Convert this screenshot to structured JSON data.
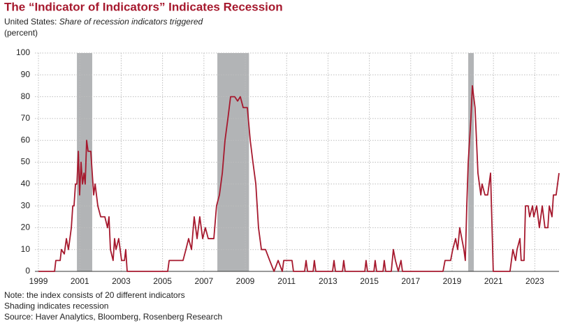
{
  "chart_data": {
    "type": "line",
    "title": "The “Indicator of Indicators” Indicates Recession",
    "subtitle_prefix": "United States:",
    "subtitle": "Share of recession indicators triggered",
    "unit": "(percent)",
    "notes": [
      "Note: the index consists of 20 different indicators",
      "Shading indicates recession",
      "Source: Haver Analytics, Bloomberg, Rosenberg Research"
    ],
    "recessions": [
      [
        2000.86,
        2001.6
      ],
      [
        2007.65,
        2009.18
      ],
      [
        2019.78,
        2020.05
      ]
    ],
    "recession_color": "#b2b4b6",
    "series": [
      {
        "color": "#a6192e",
        "x": [
          1999.0,
          1999.78,
          1999.84,
          2000.05,
          2000.11,
          2000.25,
          2000.35,
          2000.45,
          2000.59,
          2000.66,
          2000.72,
          2000.79,
          2000.86,
          2000.93,
          2000.99,
          2001.06,
          2001.13,
          2001.2,
          2001.26,
          2001.33,
          2001.4,
          2001.53,
          2001.6,
          2001.67,
          2001.74,
          2001.87,
          2002.01,
          2002.21,
          2002.34,
          2002.41,
          2002.48,
          2002.61,
          2002.68,
          2002.75,
          2002.88,
          2002.95,
          2003.02,
          2003.16,
          2003.22,
          2003.29,
          2005.25,
          2005.32,
          2005.99,
          2006.13,
          2006.26,
          2006.4,
          2006.53,
          2006.67,
          2006.8,
          2006.94,
          2007.07,
          2007.21,
          2007.48,
          2007.61,
          2007.75,
          2007.89,
          2008.02,
          2008.16,
          2008.29,
          2008.49,
          2008.63,
          2008.76,
          2008.9,
          2009.1,
          2009.24,
          2009.37,
          2009.51,
          2009.64,
          2009.78,
          2009.98,
          2010.18,
          2010.39,
          2010.59,
          2010.79,
          2010.86,
          2011.26,
          2011.33,
          2011.87,
          2011.94,
          2012.01,
          2012.28,
          2012.34,
          2012.41,
          2013.22,
          2013.29,
          2013.36,
          2013.7,
          2013.76,
          2013.83,
          2014.78,
          2014.84,
          2014.91,
          2015.22,
          2015.28,
          2015.35,
          2015.66,
          2015.72,
          2015.79,
          2016.06,
          2016.16,
          2016.26,
          2016.4,
          2016.53,
          2016.6,
          2018.56,
          2018.66,
          2018.93,
          2019.03,
          2019.17,
          2019.27,
          2019.37,
          2019.47,
          2019.57,
          2019.64,
          2019.71,
          2019.78,
          2019.91,
          2019.98,
          2020.11,
          2020.18,
          2020.25,
          2020.39,
          2020.45,
          2020.59,
          2020.72,
          2020.86,
          2020.99,
          2021.8,
          2021.94,
          2022.07,
          2022.14,
          2022.28,
          2022.34,
          2022.48,
          2022.55,
          2022.68,
          2022.75,
          2022.89,
          2022.95,
          2023.09,
          2023.22,
          2023.36,
          2023.49,
          2023.63,
          2023.7,
          2023.83,
          2023.9,
          2024.03,
          2024.17
        ],
        "values": [
          0,
          0,
          5,
          5,
          10,
          8,
          15,
          10,
          20,
          30,
          30,
          40,
          40,
          55,
          35,
          50,
          40,
          45,
          40,
          60,
          55,
          55,
          45,
          35,
          40,
          30,
          25,
          25,
          20,
          25,
          10,
          5,
          15,
          10,
          15,
          10,
          5,
          5,
          10,
          0,
          0,
          5,
          5,
          10,
          15,
          10,
          25,
          15,
          25,
          15,
          20,
          15,
          15,
          30,
          35,
          45,
          60,
          70,
          80,
          80,
          78,
          80,
          75,
          75,
          60,
          50,
          40,
          20,
          10,
          10,
          5,
          0,
          5,
          0,
          5,
          5,
          0,
          0,
          5,
          0,
          0,
          5,
          0,
          0,
          5,
          0,
          0,
          5,
          0,
          0,
          5,
          0,
          0,
          5,
          0,
          0,
          5,
          0,
          0,
          10,
          5,
          0,
          5,
          0,
          0,
          5,
          5,
          10,
          15,
          10,
          20,
          15,
          10,
          5,
          30,
          50,
          70,
          85,
          75,
          60,
          45,
          35,
          40,
          35,
          35,
          45,
          0,
          0,
          10,
          5,
          10,
          15,
          5,
          5,
          30,
          30,
          25,
          30,
          25,
          30,
          20,
          30,
          20,
          20,
          30,
          25,
          35,
          35,
          45
        ]
      }
    ],
    "xlim": [
      1998.83,
      2024.17
    ],
    "xticks": [
      1999,
      2001,
      2003,
      2005,
      2007,
      2009,
      2011,
      2013,
      2015,
      2017,
      2019,
      2021,
      2023
    ],
    "ylim": [
      0,
      100
    ],
    "yticks": [
      0,
      10,
      20,
      30,
      40,
      50,
      60,
      70,
      80,
      90,
      100
    ],
    "grid": true
  }
}
